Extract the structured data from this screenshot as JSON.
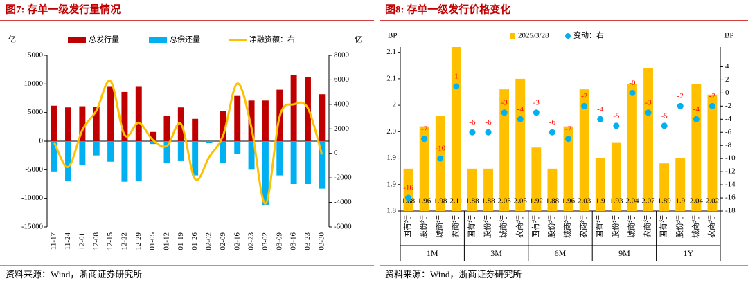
{
  "chart_data": [
    {
      "type": "bar_line",
      "title": "图7:   存单一级发行量情况",
      "source": "资料来源：Wind，浙商证券研究所",
      "y_label": "亿",
      "y2_label": "亿",
      "categories": [
        "11-17",
        "11-24",
        "12-01",
        "12-08",
        "12-15",
        "12-22",
        "12-29",
        "01-05",
        "01-12",
        "01-19",
        "01-26",
        "02-02",
        "02-09",
        "02-16",
        "02-23",
        "03-02",
        "03-09",
        "03-16",
        "03-23",
        "03-30"
      ],
      "series": [
        {
          "name": "总发行量",
          "color": "#c00000",
          "kind": "bar",
          "values": [
            6200,
            5900,
            6100,
            6000,
            9500,
            8600,
            9500,
            1600,
            4400,
            5900,
            3900,
            0,
            5300,
            7900,
            7100,
            7100,
            9000,
            11500,
            11200,
            8200
          ]
        },
        {
          "name": "总偿还量",
          "color": "#00b0f0",
          "kind": "bar",
          "values": [
            -5300,
            -7000,
            -4200,
            -2500,
            -3600,
            -7100,
            -7000,
            -500,
            -3800,
            -3500,
            -6000,
            -300,
            -3800,
            -2200,
            -5000,
            -11200,
            -6000,
            -7500,
            -7500,
            -8300
          ]
        },
        {
          "name": "净融资额：右",
          "color": "#ffc000",
          "kind": "line",
          "axis": "y2",
          "values": [
            900,
            -1100,
            1900,
            3500,
            5900,
            1500,
            2500,
            1100,
            600,
            2400,
            -2100,
            -300,
            1500,
            5700,
            2100,
            -4100,
            3000,
            4000,
            3700,
            -100
          ]
        }
      ],
      "ylim": [
        -15000,
        15000
      ],
      "yticks": [
        -15000,
        -10000,
        -5000,
        0,
        5000,
        10000,
        15000
      ],
      "y2lim": [
        -6000,
        8000
      ],
      "y2ticks": [
        -6000,
        -4000,
        -2000,
        0,
        2000,
        4000,
        6000,
        8000
      ]
    },
    {
      "type": "bar_scatter",
      "title": "图8:   存单一级发行价格变化",
      "source": "资料来源：Wind，浙商证券研究所",
      "y_label": "BP",
      "y2_label": "BP",
      "groups": [
        "1M",
        "3M",
        "6M",
        "9M",
        "1Y"
      ],
      "categories": [
        "国有行",
        "股份行",
        "城商行",
        "农商行",
        "国有行",
        "股份行",
        "城商行",
        "农商行",
        "国有行",
        "股份行",
        "城商行",
        "农商行",
        "国有行",
        "股份行",
        "城商行",
        "农商行",
        "国有行",
        "股份行",
        "城商行",
        "农商行"
      ],
      "series": [
        {
          "name": "2025/3/28",
          "color": "#ffc000",
          "kind": "bar",
          "values": [
            1.88,
            1.96,
            1.98,
            2.11,
            1.88,
            1.88,
            2.03,
            2.05,
            1.92,
            1.88,
            1.96,
            2.03,
            1.9,
            1.93,
            2.04,
            2.07,
            1.89,
            1.9,
            2.04,
            2.02
          ]
        },
        {
          "name": "变动：右",
          "color": "#00b0f0",
          "kind": "dot",
          "axis": "y2",
          "values": [
            -16,
            -7,
            -10,
            1,
            -6,
            -6,
            -3,
            -4,
            -3,
            -6,
            -7,
            -2,
            -4,
            -5,
            0,
            -3,
            -5,
            -2,
            -4,
            -2
          ],
          "value_labels": [
            "-16",
            "-7",
            "-10",
            "1",
            "-6",
            "-6",
            "-3",
            "-4",
            "-3",
            "-6",
            "-7",
            "-2",
            "-4",
            "-5",
            "-0",
            "-3",
            "-5",
            "-2",
            "-4",
            "-2"
          ]
        }
      ],
      "ylim": [
        1.8,
        2.11
      ],
      "yticks": [
        1.8,
        {
          "value": 1.85,
          "label": "1.9"
        },
        1.9,
        {
          "value": 1.95,
          "label": "2.0"
        },
        2.0,
        {
          "value": 2.05,
          "label": "2.1"
        },
        2.1
      ],
      "y2lim": [
        -18,
        7
      ],
      "y2ticks": [
        -18,
        -16,
        -14,
        -12,
        -10,
        -8,
        -6,
        -4,
        -2,
        0,
        2,
        4
      ]
    }
  ]
}
